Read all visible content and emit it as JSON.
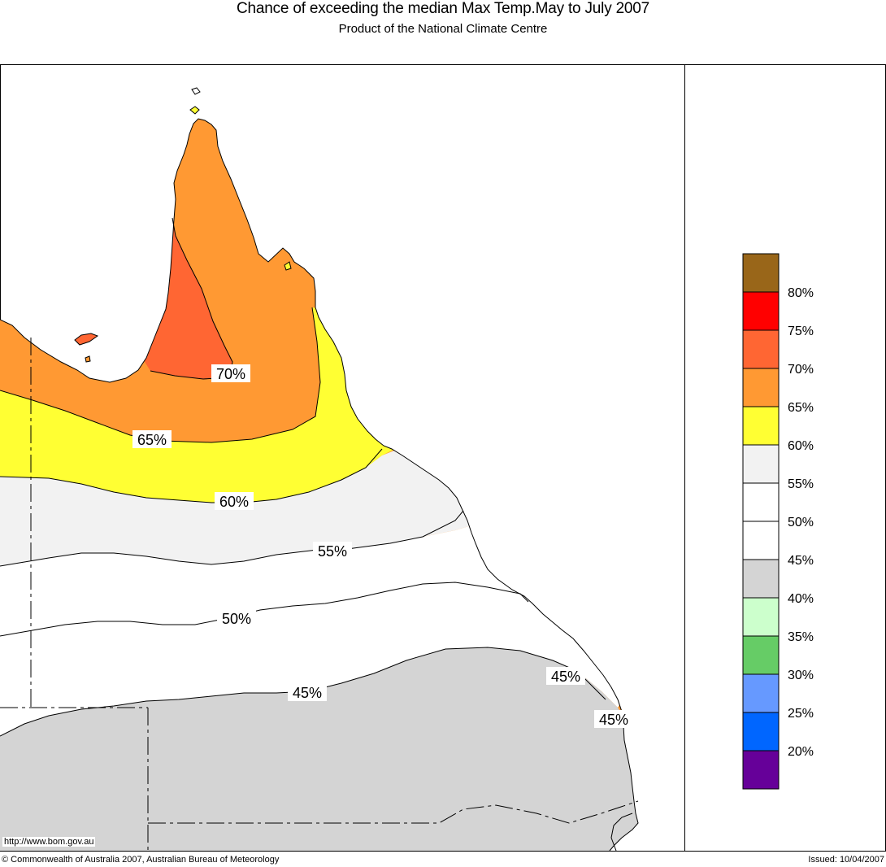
{
  "header": {
    "title": "Chance of exceeding the median Max Temp.May to July 2007",
    "subtitle": "Product of the National Climate Centre"
  },
  "map": {
    "region": "Queensland",
    "contour_labels": [
      "70%",
      "65%",
      "60%",
      "55%",
      "50%",
      "45%",
      "45%",
      "45%"
    ],
    "zone_colors": {
      "p65_70": "#ff6633",
      "p60_65": "#ff9933",
      "p55_60": "#ffff33",
      "p50_55": "#f2f2f2",
      "p45_50": "#ffffff",
      "p40_45": "#d4d4d4"
    },
    "url_text": "http://www.bom.gov.au"
  },
  "legend": {
    "colors": [
      "#996619",
      "#ff0000",
      "#ff6633",
      "#ff9933",
      "#ffff33",
      "#f2f2f2",
      "#ffffff",
      "#ffffff",
      "#d4d4d4",
      "#ccffcc",
      "#66cc66",
      "#6699ff",
      "#0066ff",
      "#660099"
    ],
    "labels": [
      "80%",
      "75%",
      "70%",
      "65%",
      "60%",
      "55%",
      "50%",
      "45%",
      "40%",
      "35%",
      "30%",
      "25%",
      "20%"
    ]
  },
  "footer": {
    "copyright": "© Commonwealth of Australia 2007, Australian Bureau of Meteorology",
    "issued": "Issued: 10/04/2007"
  }
}
